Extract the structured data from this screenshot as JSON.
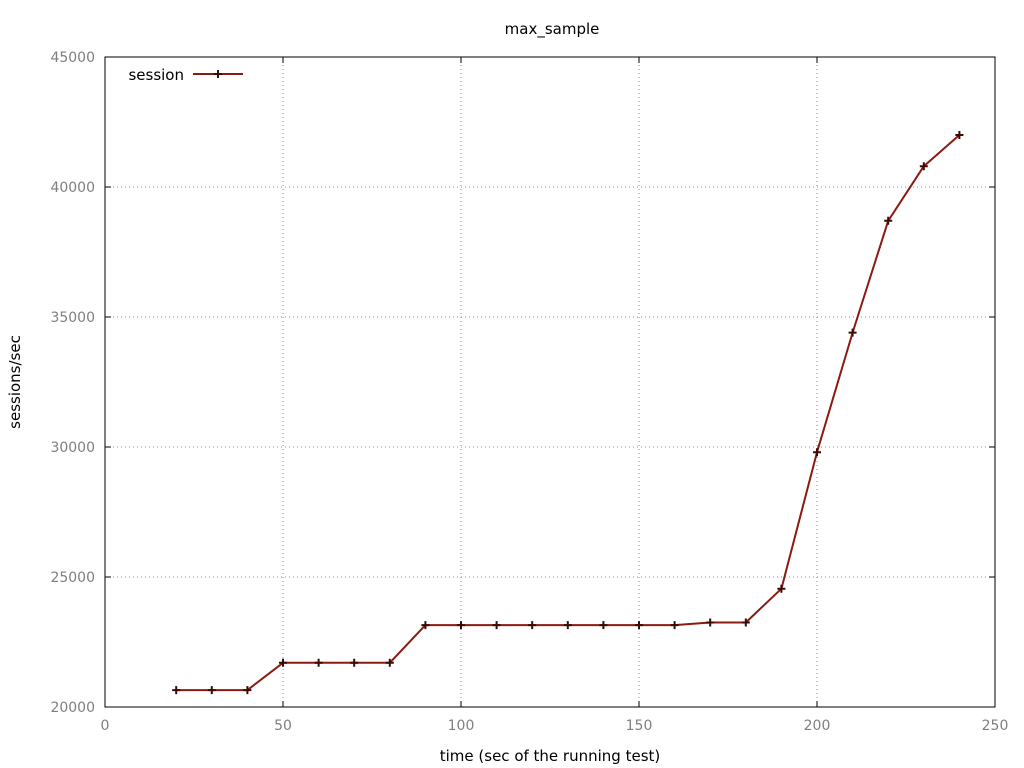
{
  "chart_data": {
    "type": "line",
    "title": "max_sample",
    "xlabel": "time (sec of the running test)",
    "ylabel": "sessions/sec",
    "xlim": [
      0,
      250
    ],
    "ylim": [
      20000,
      45000
    ],
    "xticks": [
      0,
      50,
      100,
      150,
      200,
      250
    ],
    "yticks": [
      20000,
      25000,
      30000,
      35000,
      40000,
      45000
    ],
    "grid": true,
    "legend_position": "top-left",
    "series": [
      {
        "name": "session",
        "color": "#8b1a10",
        "marker": "plus",
        "x": [
          20,
          30,
          40,
          50,
          60,
          70,
          80,
          90,
          100,
          110,
          120,
          130,
          140,
          150,
          160,
          170,
          180,
          190,
          200,
          210,
          220,
          230,
          240
        ],
        "y": [
          20650,
          20650,
          20650,
          21700,
          21700,
          21700,
          21700,
          23150,
          23150,
          23150,
          23150,
          23150,
          23150,
          23150,
          23150,
          23250,
          23250,
          24550,
          29800,
          34400,
          38700,
          40800,
          42000
        ]
      }
    ]
  }
}
